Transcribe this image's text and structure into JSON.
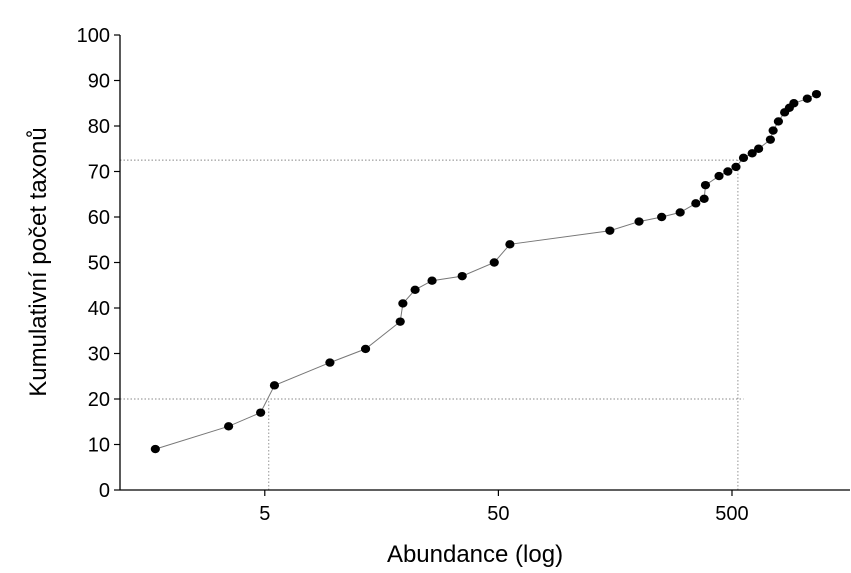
{
  "chart_data": {
    "type": "line",
    "title": "",
    "xlabel": "Abundance (log)",
    "ylabel": "Kumulativní počet taxonů",
    "x_scale": "log",
    "xlim": [
      1.2,
      1600
    ],
    "ylim": [
      0,
      100
    ],
    "x_ticks": [
      5,
      50,
      500
    ],
    "x_tick_labels": [
      "5",
      "50",
      "500"
    ],
    "y_ticks": [
      0,
      10,
      20,
      30,
      40,
      50,
      60,
      70,
      80,
      90,
      100
    ],
    "y_tick_labels": [
      "0",
      "10",
      "20",
      "30",
      "40",
      "50",
      "60",
      "70",
      "80",
      "90",
      "100"
    ],
    "grid": false,
    "legend": "none",
    "colors": {
      "line": "#777777",
      "marker": "#000000",
      "axis": "#000000",
      "guide": "#888888"
    },
    "series": [
      {
        "x": [
          1.7,
          3.5,
          4.8,
          5.5,
          9.5,
          13.5,
          19,
          19.5,
          22,
          26,
          35,
          48,
          56,
          150,
          200,
          250,
          300,
          350,
          380,
          385,
          440,
          480,
          520,
          560,
          610,
          650,
          730,
          750,
          790,
          840,
          880,
          920,
          1050,
          1150
        ],
        "y": [
          9,
          14,
          17,
          23,
          28,
          31,
          37,
          41,
          44,
          46,
          47,
          50,
          54,
          57,
          59,
          60,
          61,
          63,
          64,
          67,
          69,
          70,
          71,
          73,
          74,
          75,
          77,
          79,
          81,
          83,
          84,
          85,
          86,
          87
        ]
      }
    ],
    "guides": [
      {
        "type": "vertical",
        "x": 5.2,
        "y_to": 20
      },
      {
        "type": "horizontal",
        "y": 20,
        "x_to": 560
      },
      {
        "type": "vertical",
        "x": 530,
        "y_to": 72.5
      },
      {
        "type": "horizontal",
        "y": 72.5,
        "x_to": 560
      }
    ]
  }
}
